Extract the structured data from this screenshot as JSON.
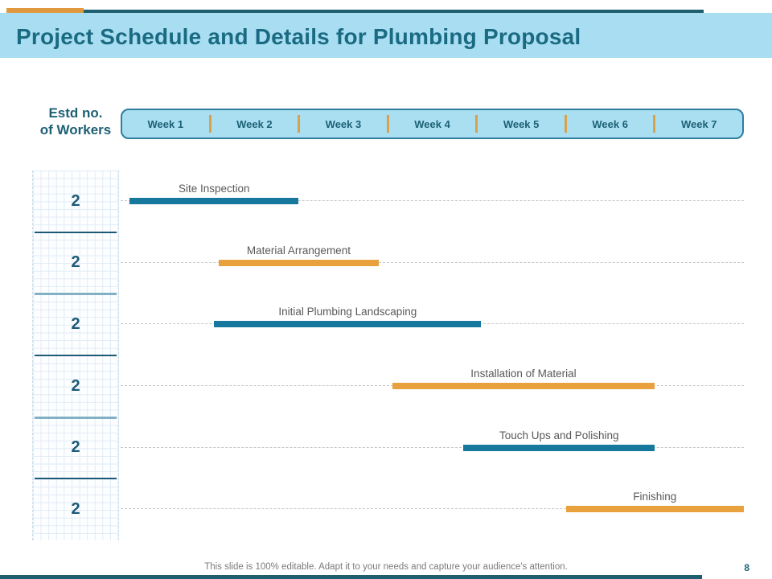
{
  "slide": {
    "title": "Project Schedule and Details for Plumbing Proposal",
    "footer_note": "This slide is 100% editable. Adapt it to your needs and capture your audience's attention.",
    "page_number": "8"
  },
  "axis": {
    "y_label_line1": "Estd no.",
    "y_label_line2": "of Workers",
    "weeks": [
      "Week 1",
      "Week 2",
      "Week 3",
      "Week 4",
      "Week 5",
      "Week 6",
      "Week 7"
    ]
  },
  "colors": {
    "accent_orange": "#e0993f",
    "accent_teal_dark": "#1d5f6f",
    "header_band_blue": "#a9def2",
    "title_teal": "#1a6b82",
    "week_box_fill": "#aadff2",
    "week_box_border": "#2e7f9e",
    "week_separator_orange": "#d8a14b",
    "bar_teal": "#15789c",
    "bar_orange": "#e8a13d",
    "task_label_gray": "#595959",
    "footer_gray": "#7b7b7b"
  },
  "chart_data": {
    "type": "gantt",
    "title": "Project Schedule and Details for Plumbing Proposal",
    "x_axis": {
      "unit": "weeks",
      "labels": [
        "Week 1",
        "Week 2",
        "Week 3",
        "Week 4",
        "Week 5",
        "Week 6",
        "Week 7"
      ],
      "range": [
        1,
        8
      ]
    },
    "y_axis": {
      "label": "Estd no. of Workers",
      "values_per_row": [
        2,
        2,
        2,
        2,
        2,
        2
      ]
    },
    "legend": "none",
    "grid": "graph-paper pattern behind worker counts only; dashed leader lines across plot rows",
    "tasks": [
      {
        "name": "Site Inspection",
        "workers": 2,
        "start_week": 1.1,
        "end_week": 3.0,
        "color": "#15789c"
      },
      {
        "name": "Material Arrangement",
        "workers": 2,
        "start_week": 2.1,
        "end_week": 3.9,
        "color": "#e8a13d"
      },
      {
        "name": "Initial Plumbing Landscaping",
        "workers": 2,
        "start_week": 2.05,
        "end_week": 5.05,
        "color": "#15789c"
      },
      {
        "name": "Installation of Material",
        "workers": 2,
        "start_week": 4.05,
        "end_week": 7.0,
        "color": "#e8a13d"
      },
      {
        "name": "Touch Ups and Polishing",
        "workers": 2,
        "start_week": 4.85,
        "end_week": 7.0,
        "color": "#15789c"
      },
      {
        "name": "Finishing",
        "workers": 2,
        "start_week": 6.0,
        "end_week": 8.0,
        "color": "#e8a13d"
      }
    ]
  }
}
